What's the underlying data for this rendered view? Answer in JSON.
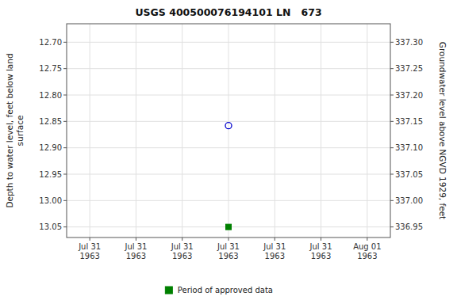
{
  "chart_data": {
    "type": "scatter",
    "title": "USGS 400500076194101 LN   673",
    "ylabel": "Depth to water level, feet below land\nsurface",
    "y2label": "Groundwater level above NGVD 1929, feet",
    "categories": [
      "Jul 31\n1963",
      "Jul 31\n1963",
      "Jul 31\n1963",
      "Jul 31\n1963",
      "Jul 31\n1963",
      "Jul 31\n1963",
      "Aug 01\n1963"
    ],
    "ylim": [
      13.07,
      12.665
    ],
    "yticks": [
      {
        "value": 12.7,
        "label": "12.70"
      },
      12.75,
      {
        "value": 12.8,
        "label": "12.80"
      },
      12.85,
      {
        "value": 12.9,
        "label": "12.90"
      },
      12.95,
      {
        "value": 13.0,
        "label": "13.00"
      },
      13.05
    ],
    "y2lim": [
      336.93,
      337.335
    ],
    "y2ticks": [
      {
        "value": 337.3,
        "label": "337.30"
      },
      337.25,
      {
        "value": 337.2,
        "label": "337.20"
      },
      337.15,
      {
        "value": 337.1,
        "label": "337.10"
      },
      337.05,
      {
        "value": 337.0,
        "label": "337.00"
      },
      336.95
    ],
    "series": [
      {
        "color": "#0000cc",
        "marker": "circle",
        "values": [
          null,
          null,
          null,
          12.858,
          null,
          null,
          null
        ]
      },
      {
        "name": "Period of approved data",
        "color": "#008000",
        "marker": "square",
        "values": [
          null,
          null,
          null,
          13.05,
          null,
          null,
          null
        ]
      }
    ],
    "grid": true,
    "legend": "bottom"
  }
}
